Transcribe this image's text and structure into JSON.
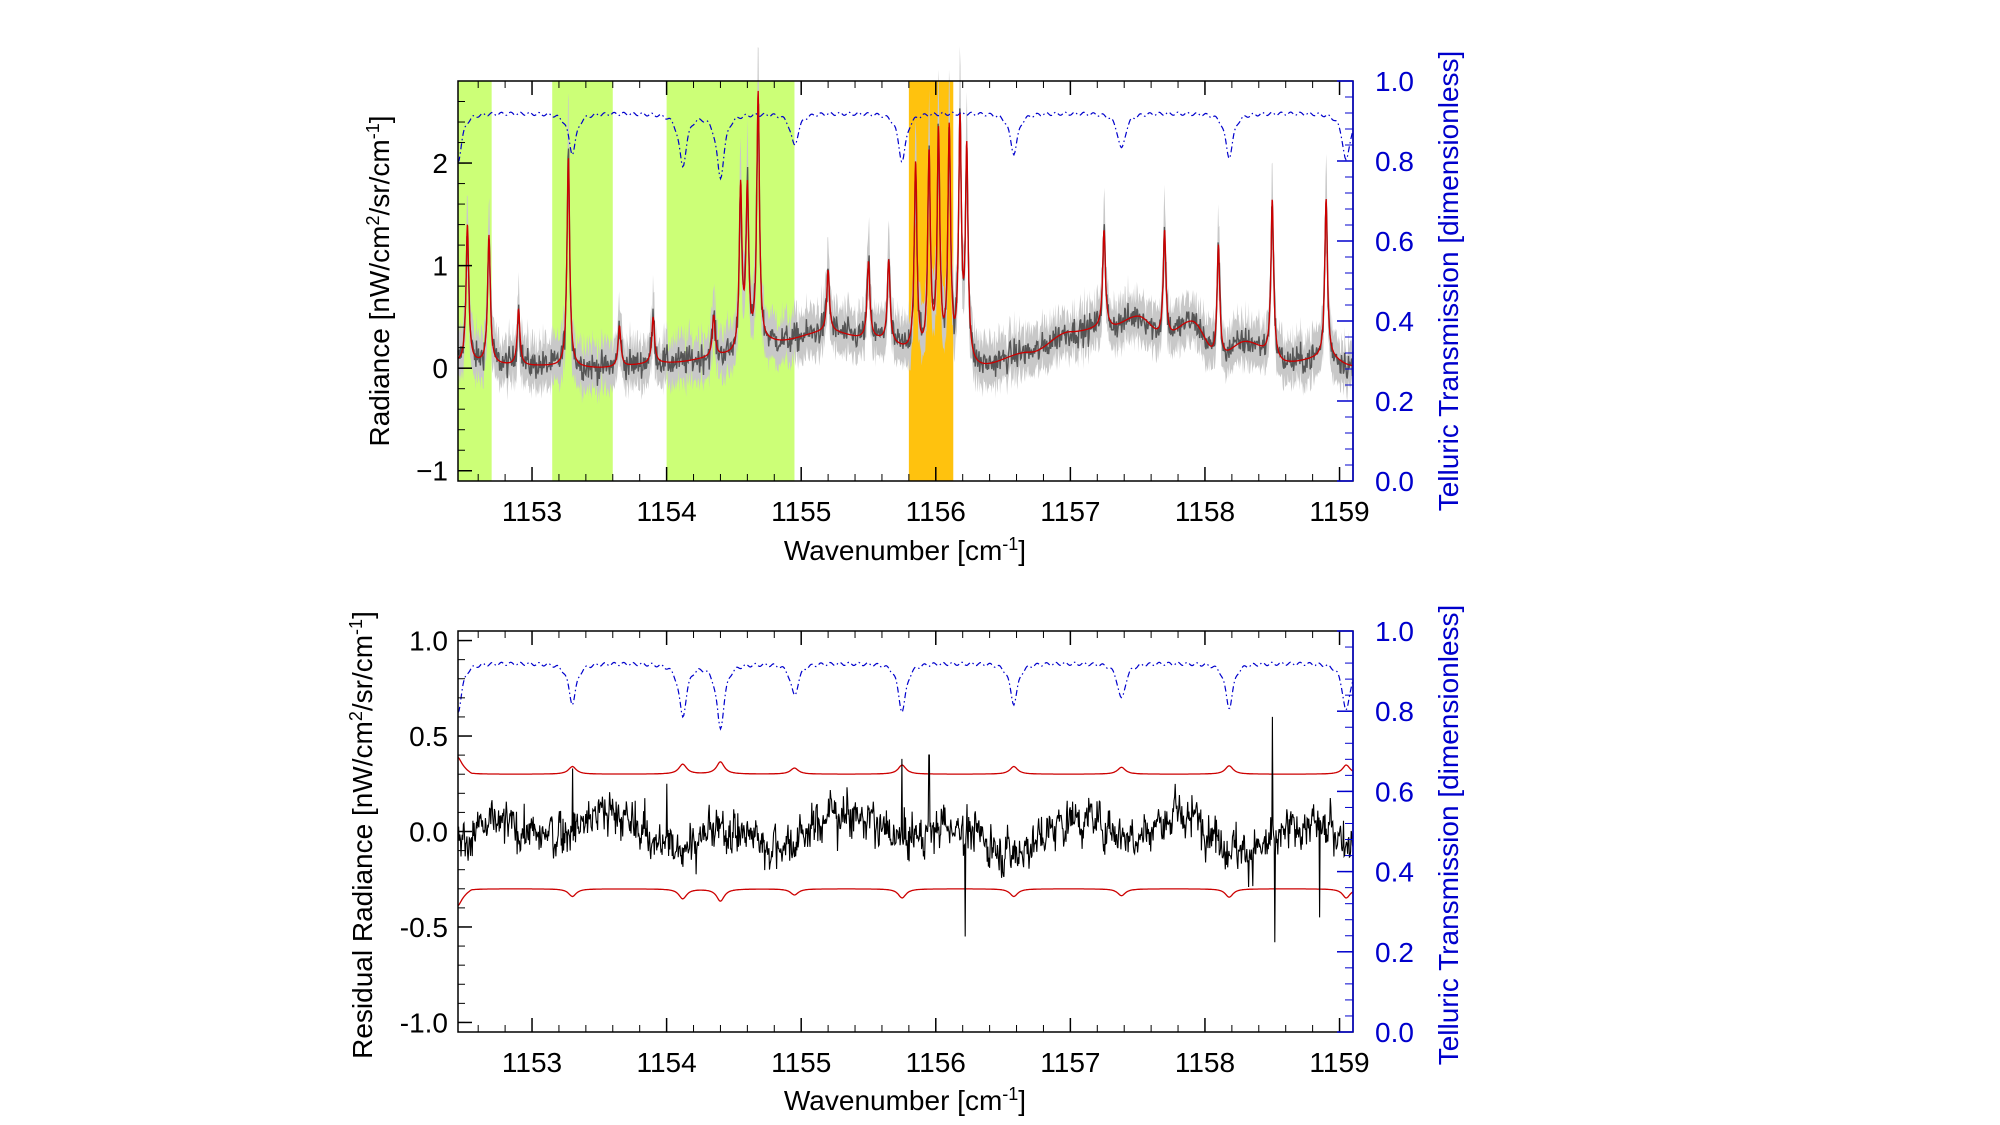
{
  "chart_data": [
    {
      "type": "line",
      "panel": "top",
      "xlabel_base": "Wavenumber [cm",
      "xlabel_sup": "-1",
      "xlabel_end": "]",
      "ylabel_parts": [
        "Radiance [nW/cm",
        "2",
        "/sr/cm",
        "-1",
        "]"
      ],
      "y2label": "Telluric Transmission [dimensionless]",
      "xlim": [
        1152.45,
        1159.1
      ],
      "ylim": [
        -1.1,
        2.8
      ],
      "y2lim": [
        0,
        1
      ],
      "x_ticks": [
        1153,
        1154,
        1155,
        1156,
        1157,
        1158,
        1159
      ],
      "y_ticks": [
        -1,
        0,
        1,
        2
      ],
      "y_tick_labels": [
        "−1",
        "0",
        "1",
        "2"
      ],
      "y2_ticks": [
        0.0,
        0.2,
        0.4,
        0.6,
        0.8,
        1.0
      ],
      "y2_tick_labels": [
        "0.0",
        "0.2",
        "0.4",
        "0.6",
        "0.8",
        "1.0"
      ],
      "highlight_bands": [
        {
          "x0": 1152.45,
          "x1": 1152.7,
          "color": "#ccff77"
        },
        {
          "x0": 1153.15,
          "x1": 1153.6,
          "color": "#ccff77"
        },
        {
          "x0": 1154.0,
          "x1": 1154.95,
          "color": "#ccff77"
        },
        {
          "x0": 1155.8,
          "x1": 1156.13,
          "color": "#ffc20e"
        }
      ],
      "baseline_continuum": {
        "x": [
          1152.45,
          1153.0,
          1153.5,
          1154.0,
          1154.5,
          1154.8,
          1155.2,
          1155.5,
          1156.0,
          1156.3,
          1156.7,
          1157.0,
          1157.3,
          1157.5,
          1157.7,
          1157.9,
          1158.1,
          1158.3,
          1158.6,
          1158.9,
          1159.1
        ],
        "y": [
          0.05,
          0.02,
          0.0,
          0.05,
          0.12,
          0.25,
          0.35,
          0.28,
          0.08,
          0.0,
          0.15,
          0.35,
          0.4,
          0.5,
          0.3,
          0.45,
          0.1,
          0.25,
          0.05,
          0.1,
          0.02
        ]
      },
      "emission_lines": [
        {
          "x": 1152.52,
          "height": 1.35
        },
        {
          "x": 1152.68,
          "height": 1.25
        },
        {
          "x": 1152.9,
          "height": 0.55
        },
        {
          "x": 1153.27,
          "height": 2.05
        },
        {
          "x": 1153.65,
          "height": 0.4
        },
        {
          "x": 1153.9,
          "height": 0.45
        },
        {
          "x": 1154.35,
          "height": 0.4
        },
        {
          "x": 1154.55,
          "height": 1.6
        },
        {
          "x": 1154.6,
          "height": 1.55
        },
        {
          "x": 1154.68,
          "height": 2.45
        },
        {
          "x": 1155.2,
          "height": 0.6
        },
        {
          "x": 1155.5,
          "height": 0.75
        },
        {
          "x": 1155.65,
          "height": 0.8
        },
        {
          "x": 1155.85,
          "height": 1.85
        },
        {
          "x": 1155.95,
          "height": 1.95
        },
        {
          "x": 1156.02,
          "height": 2.15
        },
        {
          "x": 1156.1,
          "height": 2.2
        },
        {
          "x": 1156.18,
          "height": 2.3
        },
        {
          "x": 1156.23,
          "height": 2.05
        },
        {
          "x": 1157.25,
          "height": 0.95
        },
        {
          "x": 1157.7,
          "height": 1.05
        },
        {
          "x": 1158.1,
          "height": 1.1
        },
        {
          "x": 1158.5,
          "height": 1.55
        },
        {
          "x": 1158.9,
          "height": 1.55
        }
      ],
      "transmission_dips": [
        {
          "x": 1152.45,
          "depth": 0.12
        },
        {
          "x": 1153.3,
          "depth": 0.1
        },
        {
          "x": 1154.12,
          "depth": 0.13
        },
        {
          "x": 1154.4,
          "depth": 0.16
        },
        {
          "x": 1154.95,
          "depth": 0.08
        },
        {
          "x": 1155.75,
          "depth": 0.12
        },
        {
          "x": 1156.58,
          "depth": 0.1
        },
        {
          "x": 1157.38,
          "depth": 0.09
        },
        {
          "x": 1158.18,
          "depth": 0.11
        },
        {
          "x": 1159.05,
          "depth": 0.12
        }
      ],
      "transmission_level": 0.92,
      "series": [
        {
          "name": "observed radiance",
          "color": "#555555",
          "style": "noisy"
        },
        {
          "name": "uncertainty envelope",
          "color": "#c8c8c8",
          "style": "band"
        },
        {
          "name": "model fit",
          "color": "#cc0000",
          "style": "solid"
        },
        {
          "name": "telluric transmission",
          "color": "#0000cc",
          "style": "dash-dot",
          "axis": "right"
        }
      ]
    },
    {
      "type": "line",
      "panel": "bottom",
      "xlabel_base": "Wavenumber [cm",
      "xlabel_sup": "-1",
      "xlabel_end": "]",
      "ylabel_parts": [
        "Residual Radiance [nW/cm",
        "2",
        "/sr/cm",
        "-1",
        "]"
      ],
      "y2label": "Telluric Transmission [dimensionless]",
      "xlim": [
        1152.45,
        1159.1
      ],
      "ylim": [
        -1.05,
        1.05
      ],
      "y2lim": [
        0,
        1
      ],
      "x_ticks": [
        1153,
        1154,
        1155,
        1156,
        1157,
        1158,
        1159
      ],
      "y_ticks": [
        -1.0,
        -0.5,
        0.0,
        0.5,
        1.0
      ],
      "y_tick_labels": [
        "-1.0",
        "-0.5",
        "0.0",
        "0.5",
        "1.0"
      ],
      "y2_ticks": [
        0.0,
        0.2,
        0.4,
        0.6,
        0.8,
        1.0
      ],
      "y2_tick_labels": [
        "0.0",
        "0.2",
        "0.4",
        "0.6",
        "0.8",
        "1.0"
      ],
      "noise_envelope": 0.3,
      "residual_spikes": [
        {
          "x": 1153.3,
          "value": 0.33
        },
        {
          "x": 1154.0,
          "value": 0.25
        },
        {
          "x": 1155.75,
          "value": 0.38
        },
        {
          "x": 1155.95,
          "value": 0.4
        },
        {
          "x": 1156.22,
          "value": -0.55
        },
        {
          "x": 1158.5,
          "value": 0.6
        },
        {
          "x": 1158.52,
          "value": -0.58
        },
        {
          "x": 1158.85,
          "value": -0.45
        }
      ],
      "transmission_dips": [
        {
          "x": 1152.45,
          "depth": 0.12
        },
        {
          "x": 1153.3,
          "depth": 0.1
        },
        {
          "x": 1154.12,
          "depth": 0.13
        },
        {
          "x": 1154.4,
          "depth": 0.16
        },
        {
          "x": 1154.95,
          "depth": 0.08
        },
        {
          "x": 1155.75,
          "depth": 0.12
        },
        {
          "x": 1156.58,
          "depth": 0.1
        },
        {
          "x": 1157.38,
          "depth": 0.09
        },
        {
          "x": 1158.18,
          "depth": 0.11
        },
        {
          "x": 1159.05,
          "depth": 0.12
        }
      ],
      "transmission_level": 0.92,
      "series": [
        {
          "name": "residual",
          "color": "#000000",
          "style": "noisy"
        },
        {
          "name": "uncertainty bounds",
          "color": "#cc0000",
          "style": "solid"
        },
        {
          "name": "telluric transmission",
          "color": "#0000cc",
          "style": "dash-dot",
          "axis": "right"
        }
      ]
    }
  ],
  "colors": {
    "axis": "#000000",
    "telluric_axis": "#0000cc",
    "green_band": "#ccff77",
    "orange_band": "#ffc20e"
  }
}
